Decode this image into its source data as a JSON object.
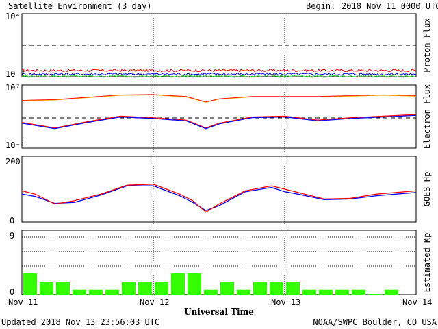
{
  "header": {
    "title": "Satellite Environment (3 day)",
    "begin_label": "Begin:",
    "begin_value": "2018 Nov 11 0000 UTC"
  },
  "footer": {
    "updated": "Updated 2018 Nov 13 23:56:03 UTC",
    "credit": "NOAA/SWPC Boulder, CO USA"
  },
  "colors": {
    "proton_red": "#ff0000",
    "proton_blue": "#0000ff",
    "proton_green": "#22dd22",
    "electron_orange": "#ffa500",
    "electron_red": "#ff0000",
    "electron_blue": "#0000ff",
    "hp_red": "#ff0000",
    "hp_blue": "#0000ff",
    "kp_bar": "#33ff00"
  },
  "chart_data": [
    {
      "type": "line",
      "panel": "proton",
      "ylabel": "Proton Flux",
      "yscale": "log",
      "yticks": [
        "10⁴",
        "10⁻²"
      ],
      "ylim_exp": [
        -2,
        4
      ],
      "threshold_exp": 1,
      "series": [
        {
          "color": "red",
          "level_exp": -1.4
        },
        {
          "color": "blue",
          "level_exp": -1.75
        },
        {
          "color": "green",
          "level_exp": -1.95
        }
      ]
    },
    {
      "type": "line",
      "panel": "electron",
      "ylabel": "Electron Flux",
      "yscale": "log",
      "yticks": [
        "10⁷",
        "10⁻¹"
      ],
      "ylim_exp": [
        -1,
        7
      ],
      "threshold_exp": 3,
      "x": [
        0,
        0.25,
        0.5,
        0.75,
        1.0,
        1.25,
        1.4,
        1.5,
        1.75,
        2.0,
        2.25,
        2.5,
        2.75,
        3.0
      ],
      "series": [
        {
          "name": "upper",
          "values_exp": [
            5.0,
            5.1,
            5.4,
            5.7,
            5.75,
            5.5,
            4.8,
            5.2,
            5.5,
            5.5,
            5.5,
            5.6,
            5.7,
            5.6
          ]
        },
        {
          "name": "lower",
          "values_exp": [
            2.2,
            1.5,
            2.3,
            3.0,
            2.8,
            2.5,
            1.5,
            2.1,
            2.9,
            3.0,
            2.5,
            2.8,
            3.0,
            3.2
          ]
        }
      ]
    },
    {
      "type": "line",
      "panel": "goes_hp",
      "ylabel": "GOES Hp",
      "yticks": [
        "200",
        "0"
      ],
      "ylim": [
        0,
        200
      ],
      "x": [
        0,
        0.1,
        0.25,
        0.4,
        0.6,
        0.8,
        1.0,
        1.1,
        1.2,
        1.3,
        1.4,
        1.5,
        1.7,
        1.9,
        2.0,
        2.1,
        2.3,
        2.5,
        2.7,
        3.0
      ],
      "series": [
        {
          "name": "red",
          "values": [
            95,
            85,
            55,
            65,
            85,
            112,
            115,
            100,
            85,
            65,
            30,
            55,
            95,
            110,
            100,
            90,
            70,
            72,
            85,
            95
          ]
        },
        {
          "name": "blue",
          "values": [
            85,
            78,
            57,
            60,
            82,
            110,
            110,
            95,
            80,
            60,
            35,
            50,
            92,
            105,
            92,
            85,
            68,
            70,
            80,
            90
          ]
        }
      ]
    },
    {
      "type": "bar",
      "panel": "kp",
      "ylabel": "Estimated Kp",
      "yticks": [
        "9",
        "0"
      ],
      "ylim": [
        0,
        9
      ],
      "values": [
        3.0,
        1.8,
        1.8,
        0.7,
        0.7,
        0.7,
        1.8,
        1.8,
        1.8,
        3.0,
        3.0,
        0.7,
        1.8,
        0.7,
        1.8,
        1.8,
        1.8,
        0.7,
        0.7,
        0.7,
        0.7,
        0.1,
        0.7,
        null
      ]
    }
  ],
  "xaxis": {
    "label": "Universal Time",
    "ticks": [
      "Nov 11",
      "Nov 12",
      "Nov 13",
      "Nov 14"
    ]
  }
}
